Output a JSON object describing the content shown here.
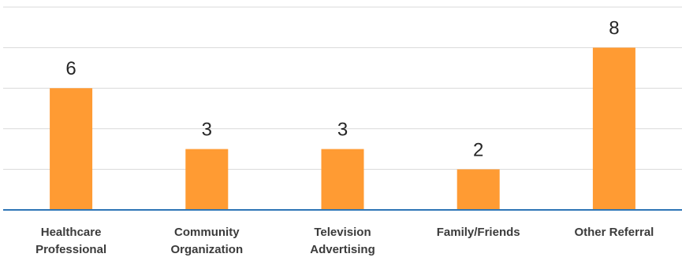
{
  "chart_data": {
    "type": "bar",
    "categories": [
      [
        "Healthcare",
        "Professional"
      ],
      [
        "Community",
        "Organization"
      ],
      [
        "Television",
        "Advertising"
      ],
      [
        "Family/Friends"
      ],
      [
        "Other Referral"
      ]
    ],
    "values": [
      6,
      3,
      3,
      2,
      8
    ],
    "data_labels": [
      "6",
      "3",
      "3",
      "2",
      "8"
    ],
    "ylim": [
      0,
      10
    ],
    "grid": true,
    "legend": "none",
    "colors": {
      "bar": "#FF9B33",
      "axis": "#2E75B6",
      "grid": "#D9D9D9"
    }
  }
}
